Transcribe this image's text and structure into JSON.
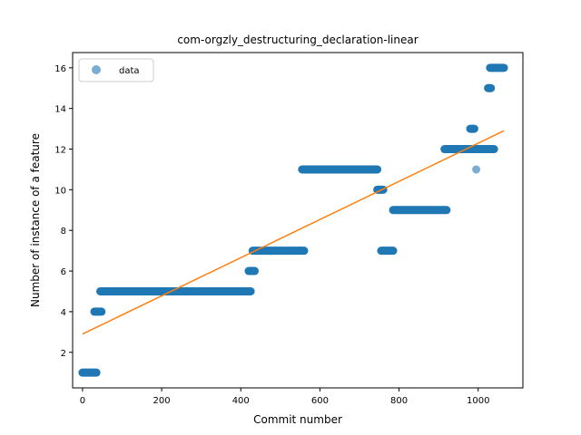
{
  "chart_data": {
    "type": "scatter",
    "title": "com-orgzly_destructuring_declaration-linear",
    "xlabel": "Commit number",
    "ylabel": "Number of instance of a feature",
    "xlim": [
      -25,
      1113
    ],
    "ylim": [
      0.25,
      16.75
    ],
    "xticks": [
      0,
      200,
      400,
      600,
      800,
      1000
    ],
    "yticks": [
      2,
      4,
      6,
      8,
      10,
      12,
      14,
      16
    ],
    "grid": false,
    "legend": {
      "position": "top-left",
      "entries": [
        "data"
      ]
    },
    "series": [
      {
        "name": "data",
        "kind": "points",
        "color": "#1f77b4",
        "segments": [
          {
            "x": [
              0,
              35
            ],
            "y": 1
          },
          {
            "x": [
              30,
              48
            ],
            "y": 4
          },
          {
            "x": [
              45,
              425
            ],
            "y": 5
          },
          {
            "x": [
              420,
              435
            ],
            "y": 6
          },
          {
            "x": [
              430,
              560
            ],
            "y": 7
          },
          {
            "x": [
              555,
              745
            ],
            "y": 11
          },
          {
            "x": [
              745,
              760
            ],
            "y": 10
          },
          {
            "x": [
              755,
              785
            ],
            "y": 7
          },
          {
            "x": [
              785,
              920
            ],
            "y": 9
          },
          {
            "x": [
              915,
              1040
            ],
            "y": 12
          },
          {
            "x": [
              980,
              990
            ],
            "y": 13
          },
          {
            "x": [
              1025,
              1032
            ],
            "y": 15
          },
          {
            "x": [
              1030,
              1065
            ],
            "y": 16
          },
          {
            "x": [
              995,
              995
            ],
            "y": 11
          }
        ]
      },
      {
        "kind": "line",
        "color": "#ff7f0e",
        "x": [
          0,
          1065
        ],
        "y": [
          2.9,
          12.9
        ]
      }
    ]
  }
}
